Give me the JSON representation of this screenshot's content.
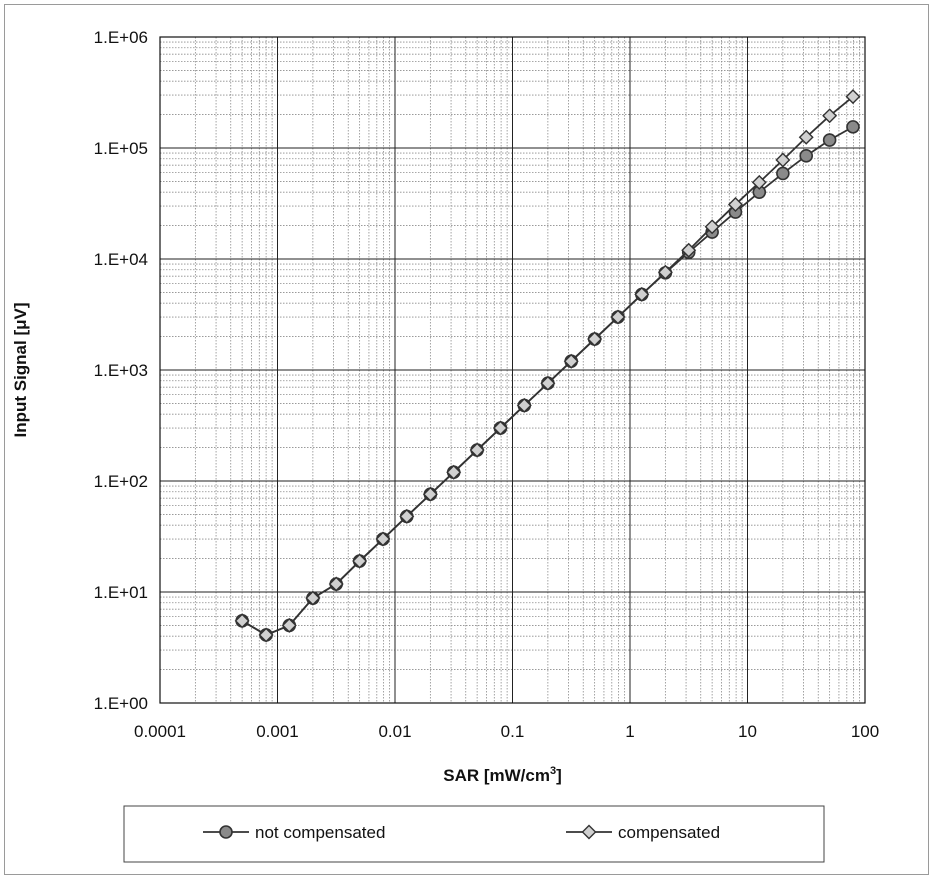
{
  "chart_data": {
    "type": "line",
    "title": "",
    "xlabel": "SAR [mW/cm",
    "xlabel_sup": "3",
    "xlabel_tail": "]",
    "ylabel": "Input Signal [μV]",
    "x_scale": "log",
    "y_scale": "log",
    "xlim": [
      0.0001,
      100
    ],
    "ylim": [
      1,
      1000000
    ],
    "x_ticks": [
      0.0001,
      0.001,
      0.01,
      0.1,
      1,
      10,
      100
    ],
    "x_tick_labels": [
      "0.0001",
      "0.001",
      "0.01",
      "0.1",
      "1",
      "10",
      "100"
    ],
    "y_ticks": [
      1,
      10,
      100,
      1000,
      10000,
      100000,
      1000000
    ],
    "y_tick_labels": [
      "1.E+00",
      "1.E+01",
      "1.E+02",
      "1.E+03",
      "1.E+04",
      "1.E+05",
      "1.E+06"
    ],
    "grid": true,
    "legend_position": "bottom",
    "series": [
      {
        "name": "not compensated",
        "marker": "circle",
        "color": "#333333",
        "fill": "#8a8a8a",
        "x": [
          0.0005,
          0.0008,
          0.00126,
          0.002,
          0.00316,
          0.005,
          0.0079,
          0.0126,
          0.02,
          0.0316,
          0.05,
          0.079,
          0.126,
          0.2,
          0.316,
          0.5,
          0.79,
          1.26,
          2.0,
          3.16,
          5.0,
          7.9,
          12.6,
          20,
          31.6,
          50,
          79
        ],
        "y": [
          5.5,
          4.1,
          5.0,
          8.8,
          11.8,
          19,
          30,
          48,
          76,
          120,
          190,
          300,
          480,
          760,
          1200,
          1900,
          3000,
          4800,
          7500,
          11500,
          17500,
          26500,
          40000,
          59000,
          85000,
          118000,
          155000
        ]
      },
      {
        "name": "compensated",
        "marker": "diamond",
        "color": "#333333",
        "fill": "#d0d0d0",
        "x": [
          0.0005,
          0.0008,
          0.00126,
          0.002,
          0.00316,
          0.005,
          0.0079,
          0.0126,
          0.02,
          0.0316,
          0.05,
          0.079,
          0.126,
          0.2,
          0.316,
          0.5,
          0.79,
          1.26,
          2.0,
          3.16,
          5.0,
          7.9,
          12.6,
          20,
          31.6,
          50,
          79
        ],
        "y": [
          5.5,
          4.1,
          5.0,
          8.8,
          11.8,
          19,
          30,
          48,
          76,
          120,
          190,
          300,
          480,
          760,
          1200,
          1900,
          3000,
          4800,
          7600,
          12000,
          19500,
          31000,
          49000,
          78000,
          125000,
          195000,
          290000
        ]
      }
    ]
  }
}
